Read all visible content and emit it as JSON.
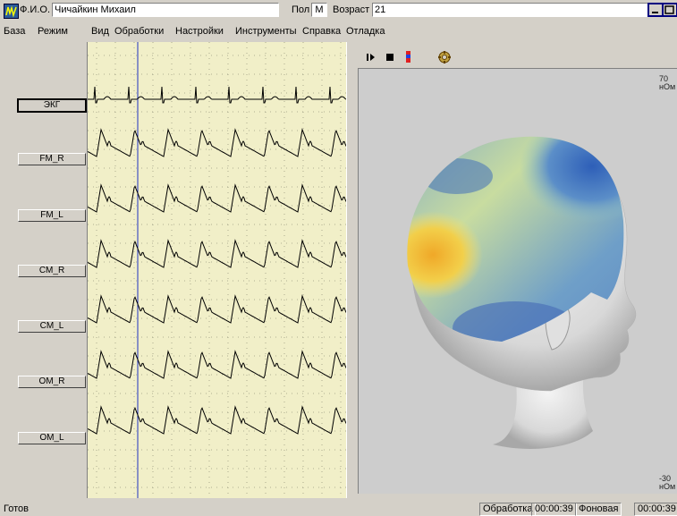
{
  "titlebar": {
    "fio_label": "Ф.И.О.",
    "fio_value": "Чичайкин Михаил",
    "sex_label": "Пол",
    "sex_value": "М",
    "age_label": "Возраст",
    "age_value": "21"
  },
  "menu": [
    "База",
    "Режим",
    "Вид",
    "Обработки",
    "Настройки",
    "Инструменты",
    "Справка",
    "Отладка"
  ],
  "channels": [
    "ЭКГ",
    "FM_R",
    "FM_L",
    "CM_R",
    "CM_L",
    "OM_R",
    "OM_L"
  ],
  "scale": {
    "top_value": "70",
    "top_unit": "нОм",
    "bottom_value": "-30",
    "bottom_unit": "нОм"
  },
  "status": {
    "ready": "Готов",
    "mode": "Обработка",
    "time1": "00:00:39",
    "type": "Фоновая",
    "time2": "00:00:39"
  },
  "icons": [
    "app-icon",
    "new-file-icon",
    "open-file-icon",
    "channel-config-icon",
    "play-icon",
    "stop-icon",
    "color-scale-icon",
    "settings-icon",
    "minimize-icon",
    "maximize-icon"
  ]
}
